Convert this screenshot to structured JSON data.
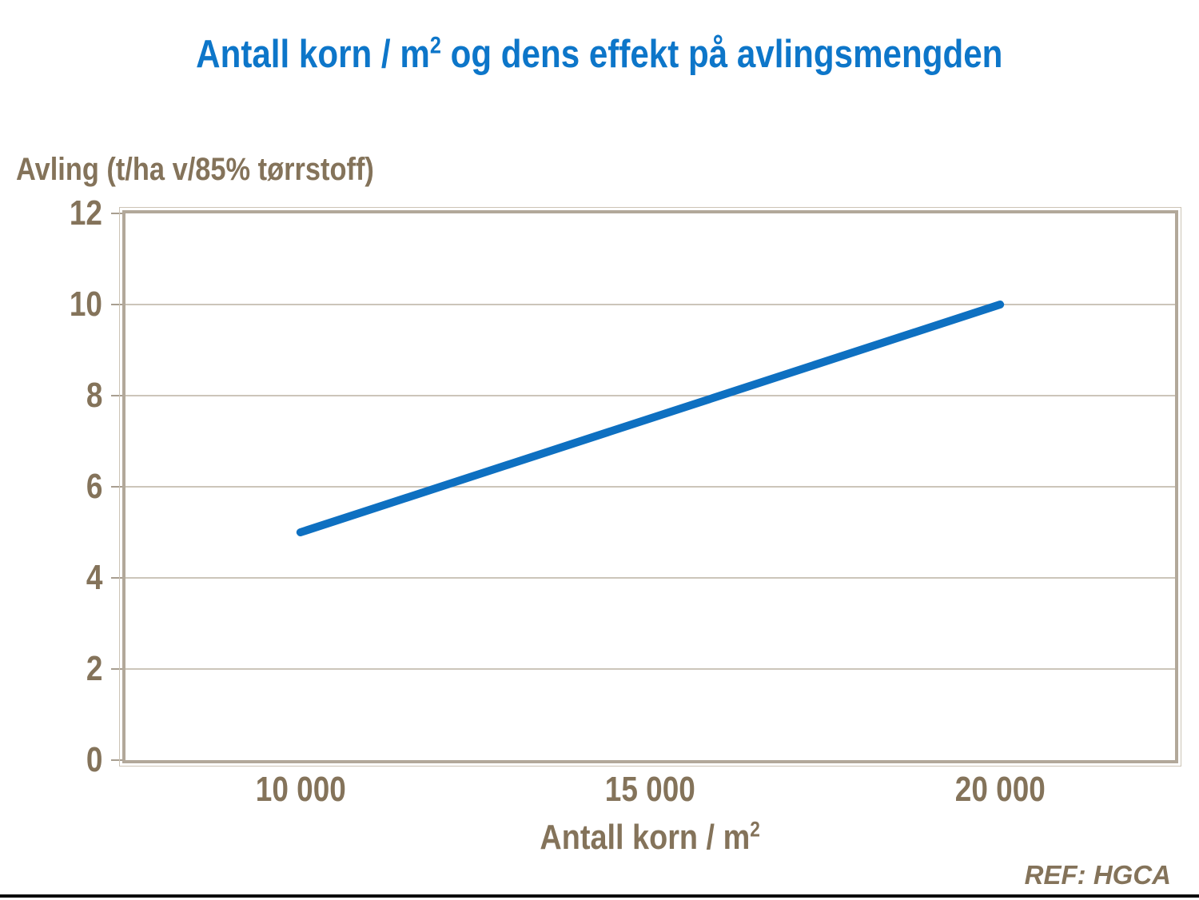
{
  "colors": {
    "text_brown": "#84735a",
    "title_blue": "#0d76c9",
    "line_blue": "#0e70c1",
    "plot_border": "#b2a89a",
    "plot_border_outer": "#ccc4b6",
    "gridline": "#bcb2a4",
    "tick": "#a89e90",
    "bottom_rule": "#0b0b0b",
    "background": "#ffffff"
  },
  "title": {
    "part1": "Antall korn / m",
    "sup": "2",
    "part2": " og dens effekt på avlingsmengden"
  },
  "y_axis": {
    "label": "Avling (t/ha v/85% tørrstoff)",
    "tick_labels_top_to_bottom": [
      "12",
      "10",
      "8",
      "6",
      "4",
      "2",
      "0"
    ]
  },
  "x_axis": {
    "title_part1": "Antall korn / m",
    "title_sup": "2",
    "tick_labels": [
      "10 000",
      "15 000",
      "20 000"
    ]
  },
  "footer": {
    "ref": "REF: HGCA"
  },
  "chart_data": {
    "type": "line",
    "title": "Antall korn / m2 og dens effekt på avlingsmengden",
    "xlabel": "Antall korn / m2",
    "ylabel": "Avling (t/ha v/85% tørrstoff)",
    "categories": [
      "10 000",
      "15 000",
      "20 000"
    ],
    "x": [
      10000,
      15000,
      20000
    ],
    "series": [
      {
        "name": "Avling",
        "values": [
          5,
          7.5,
          10
        ]
      }
    ],
    "ylim": [
      0,
      12
    ],
    "y_tick_step": 2,
    "grid": true,
    "legend": "none",
    "line_color": "#0e70c1",
    "line_width": 10
  }
}
